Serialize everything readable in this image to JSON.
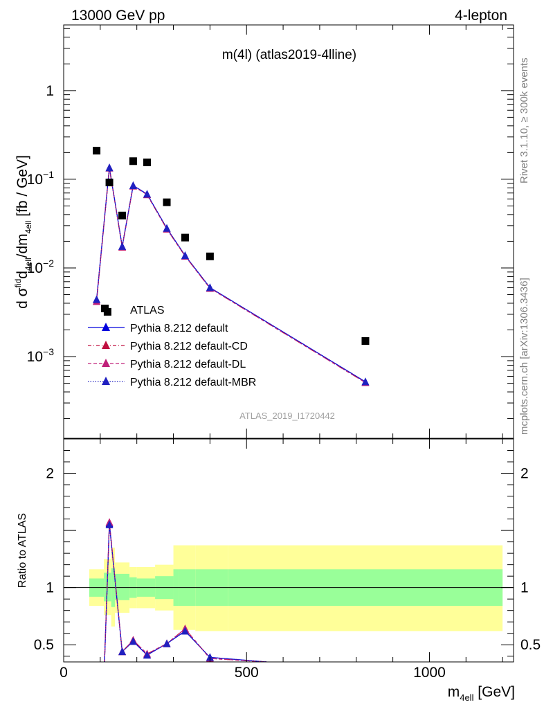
{
  "header": {
    "energy_label": "13000 GeV pp",
    "process_label": "4-lepton"
  },
  "plot_title": "m(4l) (atlas2019-4lline)",
  "watermark": "ATLAS_2019_I1720442",
  "side_text": {
    "rivet": "Rivet 3.1.10, ≥ 300k events",
    "mcplots": "mcplots.cern.ch [arXiv:1306.3436]"
  },
  "colors": {
    "data": "#000000",
    "pythia_default": "#0000dd",
    "pythia_cd": "#c01040",
    "pythia_dl": "#c0207a",
    "pythia_mbr": "#2020c0",
    "band_inner": "#99ff99",
    "band_outer": "#ffff99"
  },
  "chart_data": [
    {
      "type": "scatter",
      "panel": "main",
      "ylabel_parts": {
        "d": "d",
        "sigma": "σ",
        "fid": "fid",
        "sub4ell": "4ell",
        "slash_dm": "/dm",
        "unit": " [fb / GeV]"
      },
      "yscale": "log",
      "ylim": [
        0.00012,
        5.5
      ],
      "xlim": [
        0,
        1230
      ],
      "y_ticks": [
        {
          "value": 1,
          "label": "1"
        },
        {
          "value": 0.1,
          "base": "10",
          "exp": "−1"
        },
        {
          "value": 0.01,
          "base": "10",
          "exp": "−2"
        },
        {
          "value": 0.001,
          "base": "10",
          "exp": "−3"
        }
      ],
      "legend_position": "lower-left",
      "series": [
        {
          "name": "ATLAS",
          "style": "data",
          "x": [
            90,
            120,
            125,
            160,
            190,
            228,
            282,
            332,
            400,
            825
          ],
          "y": [
            0.21,
            0.0032,
            0.092,
            0.039,
            0.16,
            0.155,
            0.055,
            0.022,
            0.0135,
            0.0015
          ]
        },
        {
          "name": "Pythia 8.212 default",
          "style": "solid",
          "x": [
            90,
            120,
            125,
            160,
            190,
            228,
            282,
            332,
            400,
            825
          ],
          "y": [
            0.0044,
            null,
            0.135,
            0.0175,
            0.085,
            0.068,
            0.028,
            0.0138,
            0.006,
            0.00052
          ]
        },
        {
          "name": "Pythia 8.212 default-CD",
          "style": "dashdot",
          "x": [
            90,
            120,
            125,
            160,
            190,
            228,
            282,
            332,
            400,
            825
          ],
          "y": [
            0.0042,
            null,
            0.134,
            0.0172,
            0.084,
            0.067,
            0.0275,
            0.0136,
            0.0059,
            0.00051
          ]
        },
        {
          "name": "Pythia 8.212 default-DL",
          "style": "dashed",
          "x": [
            90,
            120,
            125,
            160,
            190,
            228,
            282,
            332,
            400,
            825
          ],
          "y": [
            0.0042,
            null,
            0.134,
            0.0172,
            0.084,
            0.067,
            0.0275,
            0.0136,
            0.0059,
            0.00051
          ]
        },
        {
          "name": "Pythia 8.212 default-MBR",
          "style": "dotted",
          "x": [
            90,
            120,
            125,
            160,
            190,
            228,
            282,
            332,
            400,
            825
          ],
          "y": [
            0.0044,
            null,
            0.135,
            0.0175,
            0.085,
            0.068,
            0.028,
            0.0138,
            0.006,
            0.00052
          ]
        }
      ]
    },
    {
      "type": "line",
      "panel": "ratio",
      "ylabel": "Ratio to ATLAS",
      "xlabel_parts": {
        "m": "m",
        "sub": "4ell",
        "unit": " [GeV]"
      },
      "ylim": [
        0.35,
        2.3
      ],
      "xlim": [
        0,
        1230
      ],
      "x_ticks": [
        0,
        500,
        1000
      ],
      "y_ticks": [
        {
          "value": 0.5,
          "label": "0.5"
        },
        {
          "value": 1,
          "label": "1"
        },
        {
          "value": 2,
          "label": "2"
        }
      ],
      "bands": {
        "edges": [
          70,
          110,
          130,
          140,
          180,
          200,
          250,
          300,
          315,
          360,
          450,
          1200
        ],
        "inner_low": [
          0.92,
          0.88,
          0.83,
          0.89,
          0.91,
          0.92,
          0.9,
          0.84,
          0.84,
          0.84,
          0.84
        ],
        "inner_high": [
          1.08,
          1.13,
          1.17,
          1.12,
          1.09,
          1.08,
          1.1,
          1.16,
          1.16,
          1.16,
          1.16
        ],
        "outer_low": [
          0.84,
          0.76,
          0.66,
          0.78,
          0.82,
          0.82,
          0.8,
          0.63,
          0.63,
          0.62,
          0.62
        ],
        "outer_high": [
          1.16,
          1.25,
          1.35,
          1.22,
          1.18,
          1.18,
          1.2,
          1.37,
          1.37,
          1.37,
          1.37
        ]
      },
      "series": [
        {
          "name": "Pythia 8.212 default",
          "style": "solid",
          "x": [
            110,
            125,
            160,
            190,
            228,
            282,
            332,
            400,
            555
          ],
          "y": [
            0.2,
            1.56,
            0.44,
            0.53,
            0.41,
            0.51,
            0.62,
            0.39,
            0.35
          ]
        },
        {
          "name": "Pythia 8.212 default-CD",
          "style": "dashdot",
          "x": [
            110,
            125,
            160,
            190,
            228,
            282,
            332,
            400,
            555
          ],
          "y": [
            0.2,
            1.57,
            0.44,
            0.54,
            0.42,
            0.51,
            0.64,
            0.38,
            0.35
          ]
        },
        {
          "name": "Pythia 8.212 default-DL",
          "style": "dashed",
          "x": [
            110,
            125,
            160,
            190,
            228,
            282,
            332,
            400,
            555
          ],
          "y": [
            0.2,
            1.57,
            0.44,
            0.54,
            0.42,
            0.51,
            0.64,
            0.38,
            0.35
          ]
        },
        {
          "name": "Pythia 8.212 default-MBR",
          "style": "dotted",
          "x": [
            110,
            125,
            160,
            190,
            228,
            282,
            332,
            400,
            555
          ],
          "y": [
            0.2,
            1.55,
            0.44,
            0.53,
            0.41,
            0.51,
            0.62,
            0.39,
            0.35
          ]
        }
      ]
    }
  ]
}
